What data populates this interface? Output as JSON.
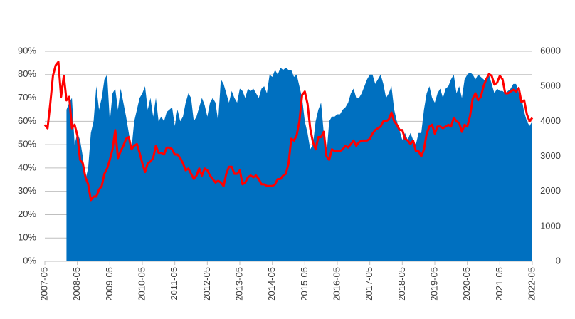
{
  "chart_data": {
    "type": "combo",
    "categories": [
      "2007-05",
      null,
      null,
      null,
      null,
      null,
      null,
      null,
      null,
      null,
      null,
      null,
      "2008-05",
      null,
      null,
      null,
      null,
      null,
      null,
      null,
      null,
      null,
      null,
      null,
      "2009-05",
      null,
      null,
      null,
      null,
      null,
      null,
      null,
      null,
      null,
      null,
      null,
      "2010-05",
      null,
      null,
      null,
      null,
      null,
      null,
      null,
      null,
      null,
      null,
      null,
      "2011-05",
      null,
      null,
      null,
      null,
      null,
      null,
      null,
      null,
      null,
      null,
      null,
      "2012-05",
      null,
      null,
      null,
      null,
      null,
      null,
      null,
      null,
      null,
      null,
      null,
      "2013-05",
      null,
      null,
      null,
      null,
      null,
      null,
      null,
      null,
      null,
      null,
      null,
      "2014-05",
      null,
      null,
      null,
      null,
      null,
      null,
      null,
      null,
      null,
      null,
      null,
      "2015-05",
      null,
      null,
      null,
      null,
      null,
      null,
      null,
      null,
      null,
      null,
      null,
      "2016-05",
      null,
      null,
      null,
      null,
      null,
      null,
      null,
      null,
      null,
      null,
      null,
      "2017-05",
      null,
      null,
      null,
      null,
      null,
      null,
      null,
      null,
      null,
      null,
      null,
      "2018-05",
      null,
      null,
      null,
      null,
      null,
      null,
      null,
      null,
      null,
      null,
      null,
      "2019-05",
      null,
      null,
      null,
      null,
      null,
      null,
      null,
      null,
      null,
      null,
      null,
      "2020-05",
      null,
      null,
      null,
      null,
      null,
      null,
      null,
      null,
      null,
      null,
      null,
      "2021-05",
      null,
      null,
      null,
      null,
      null,
      null,
      null,
      null,
      null,
      null,
      null,
      "2022-05"
    ],
    "series": [
      {
        "type": "area",
        "color": "#0070c0",
        "values": [
          null,
          null,
          null,
          null,
          null,
          null,
          null,
          null,
          65,
          68,
          70,
          50,
          55,
          52,
          45,
          35,
          40,
          55,
          60,
          75,
          65,
          70,
          78,
          80,
          60,
          72,
          74,
          65,
          74,
          68,
          62,
          55,
          48,
          60,
          65,
          70,
          72,
          75,
          65,
          70,
          62,
          70,
          60,
          62,
          60,
          64,
          65,
          66,
          58,
          65,
          60,
          62,
          68,
          72,
          70,
          60,
          62,
          66,
          70,
          67,
          62,
          68,
          70,
          68,
          60,
          78,
          76,
          72,
          68,
          73,
          70,
          68,
          74,
          73,
          70,
          74,
          73,
          74,
          72,
          70,
          74,
          75,
          72,
          80,
          79,
          82,
          80,
          83,
          82,
          83,
          82,
          82,
          79,
          80,
          75,
          70,
          60,
          55,
          48,
          50,
          60,
          65,
          68,
          55,
          45,
          60,
          62,
          62,
          63,
          63,
          65,
          66,
          68,
          72,
          74,
          70,
          70,
          72,
          75,
          78,
          80,
          80,
          76,
          78,
          80,
          76,
          70,
          72,
          75,
          65,
          60,
          56,
          52,
          55,
          52,
          55,
          52,
          50,
          55,
          55,
          65,
          72,
          75,
          70,
          68,
          72,
          74,
          70,
          74,
          75,
          78,
          80,
          72,
          75,
          70,
          78,
          80,
          81,
          80,
          78,
          80,
          79,
          78,
          77,
          80,
          76,
          72,
          74,
          73,
          73,
          72,
          73,
          74,
          76,
          76,
          72,
          70,
          64,
          60,
          58,
          60
        ]
      },
      {
        "type": "line",
        "axis": "y2",
        "color": "#ff0000",
        "values": [
          3900,
          3800,
          4500,
          5300,
          5600,
          5700,
          4700,
          5300,
          4600,
          4700,
          3800,
          3900,
          3600,
          2900,
          2800,
          2400,
          2200,
          1750,
          1850,
          1850,
          2050,
          2150,
          2500,
          2650,
          2900,
          3200,
          3750,
          2950,
          3150,
          3300,
          3500,
          3550,
          3200,
          3300,
          3350,
          3100,
          2800,
          2550,
          2800,
          2850,
          2950,
          3300,
          3100,
          3100,
          3050,
          3250,
          3250,
          3200,
          3050,
          3050,
          2950,
          2800,
          2600,
          2650,
          2500,
          2350,
          2450,
          2650,
          2450,
          2650,
          2600,
          2450,
          2350,
          2250,
          2300,
          2250,
          2150,
          2500,
          2700,
          2700,
          2500,
          2500,
          2600,
          2200,
          2250,
          2400,
          2450,
          2400,
          2450,
          2350,
          2200,
          2200,
          2150,
          2150,
          2150,
          2200,
          2350,
          2350,
          2450,
          2500,
          2800,
          3500,
          3450,
          3600,
          4000,
          4750,
          4850,
          4500,
          3800,
          3400,
          3200,
          3550,
          3550,
          3700,
          3000,
          2900,
          3200,
          3150,
          3150,
          3150,
          3200,
          3300,
          3250,
          3350,
          3450,
          3300,
          3400,
          3450,
          3450,
          3450,
          3500,
          3650,
          3750,
          3800,
          3850,
          4000,
          4000,
          4050,
          4250,
          4000,
          3900,
          3750,
          3750,
          3500,
          3450,
          3350,
          3450,
          3150,
          3150,
          3000,
          3200,
          3650,
          3850,
          3900,
          3650,
          3850,
          3850,
          3800,
          3850,
          3900,
          3850,
          4100,
          4000,
          3950,
          3700,
          3900,
          3850,
          4150,
          4650,
          4800,
          4600,
          4700,
          5000,
          5200,
          5350,
          5300,
          5050,
          5100,
          5300,
          5200,
          4800,
          4800,
          4850,
          4900,
          4850,
          4950,
          4550,
          4600,
          4200,
          4000,
          4100
        ]
      }
    ],
    "ylim": [
      0,
      90
    ],
    "yticks": [
      {
        "value": 0,
        "label": "0%"
      },
      {
        "value": 10,
        "label": "10%"
      },
      {
        "value": 20,
        "label": "20%"
      },
      {
        "value": 30,
        "label": "30%"
      },
      {
        "value": 40,
        "label": "40%"
      },
      {
        "value": 50,
        "label": "50%"
      },
      {
        "value": 60,
        "label": "60%"
      },
      {
        "value": 70,
        "label": "70%"
      },
      {
        "value": 80,
        "label": "80%"
      },
      {
        "value": 90,
        "label": "90%"
      }
    ],
    "y2lim": [
      0,
      6000
    ],
    "y2ticks": [
      0,
      1000,
      2000,
      3000,
      4000,
      5000,
      6000
    ],
    "grid": true
  }
}
